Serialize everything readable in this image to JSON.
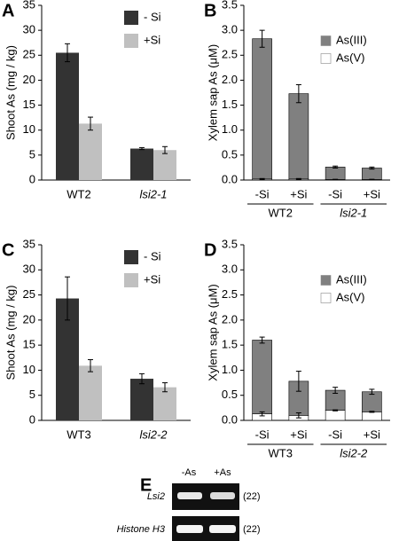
{
  "chart_data": [
    {
      "type": "bar",
      "panel": "A",
      "ylabel": "Shoot As (mg / kg)",
      "categories": [
        "WT2",
        "lsi2-1"
      ],
      "series": [
        {
          "name": "- Si",
          "color": "#333333",
          "values": [
            25.5,
            6.3
          ],
          "errors": [
            1.8,
            0.2
          ]
        },
        {
          "name": "+Si",
          "color": "#c0c0c0",
          "values": [
            11.3,
            6.0
          ],
          "errors": [
            1.3,
            0.7
          ]
        }
      ],
      "ylim": [
        0,
        35
      ],
      "yticks": [
        0,
        5,
        10,
        15,
        20,
        25,
        30,
        35
      ],
      "legend": "upper right"
    },
    {
      "type": "stacked_bar",
      "panel": "B",
      "ylabel": "Xylem sap As (μM)",
      "categories": [
        "-Si",
        "+Si",
        "-Si",
        "+Si"
      ],
      "groups": [
        "WT2",
        "lsi2-1"
      ],
      "series": [
        {
          "name": "As(V)",
          "color": "#ffffff",
          "values": [
            0.02,
            0.02,
            0.01,
            0.01
          ],
          "errors": [
            0.01,
            0.01,
            0.005,
            0.005
          ]
        },
        {
          "name": "As(III)",
          "color": "#808080",
          "values": [
            2.81,
            1.71,
            0.25,
            0.23
          ],
          "errors": [
            0.17,
            0.18,
            0.02,
            0.02
          ]
        }
      ],
      "ylim": [
        0,
        3.5
      ],
      "yticks": [
        {
          "value": 0,
          "label": "0.0"
        },
        0.5,
        {
          "value": 1,
          "label": "1.0"
        },
        1.5,
        {
          "value": 2,
          "label": "2.0"
        },
        2.5,
        {
          "value": 3,
          "label": "3.0"
        },
        3.5
      ],
      "legend": "upper right"
    },
    {
      "type": "bar",
      "panel": "C",
      "ylabel": "Shoot As (mg / kg)",
      "categories": [
        "WT3",
        "lsi2-2"
      ],
      "series": [
        {
          "name": "- Si",
          "color": "#333333",
          "values": [
            24.3,
            8.3
          ],
          "errors": [
            4.3,
            1.0
          ]
        },
        {
          "name": "+Si",
          "color": "#c0c0c0",
          "values": [
            10.9,
            6.6
          ],
          "errors": [
            1.2,
            0.9
          ]
        }
      ],
      "ylim": [
        0,
        35
      ],
      "yticks": [
        0,
        5,
        10,
        15,
        20,
        25,
        30,
        35
      ],
      "legend": "upper right"
    },
    {
      "type": "stacked_bar",
      "panel": "D",
      "ylabel": "Xylem sap As (μM)",
      "categories": [
        "-Si",
        "+Si",
        "-Si",
        "+Si"
      ],
      "groups": [
        "WT3",
        "lsi2-2"
      ],
      "series": [
        {
          "name": "As(V)",
          "color": "#ffffff",
          "values": [
            0.13,
            0.1,
            0.2,
            0.17
          ],
          "errors": [
            0.04,
            0.05,
            0.01,
            0.01
          ]
        },
        {
          "name": "As(III)",
          "color": "#808080",
          "values": [
            1.47,
            0.68,
            0.4,
            0.4
          ],
          "errors": [
            0.06,
            0.2,
            0.06,
            0.05
          ]
        }
      ],
      "ylim": [
        0,
        3.5
      ],
      "yticks": [
        {
          "value": 0,
          "label": "0.0"
        },
        0.5,
        {
          "value": 1,
          "label": "1.0"
        },
        1.5,
        {
          "value": 2,
          "label": "2.0"
        },
        2.5,
        {
          "value": 3,
          "label": "3.0"
        },
        3.5
      ],
      "legend": "upper right"
    }
  ],
  "gel": {
    "panel": "E",
    "lanes": [
      "-As",
      "+As"
    ],
    "rows": [
      {
        "label": "Lsi2",
        "cycles": "(22)"
      },
      {
        "label": "Histone H3",
        "cycles": "(22)"
      }
    ]
  }
}
